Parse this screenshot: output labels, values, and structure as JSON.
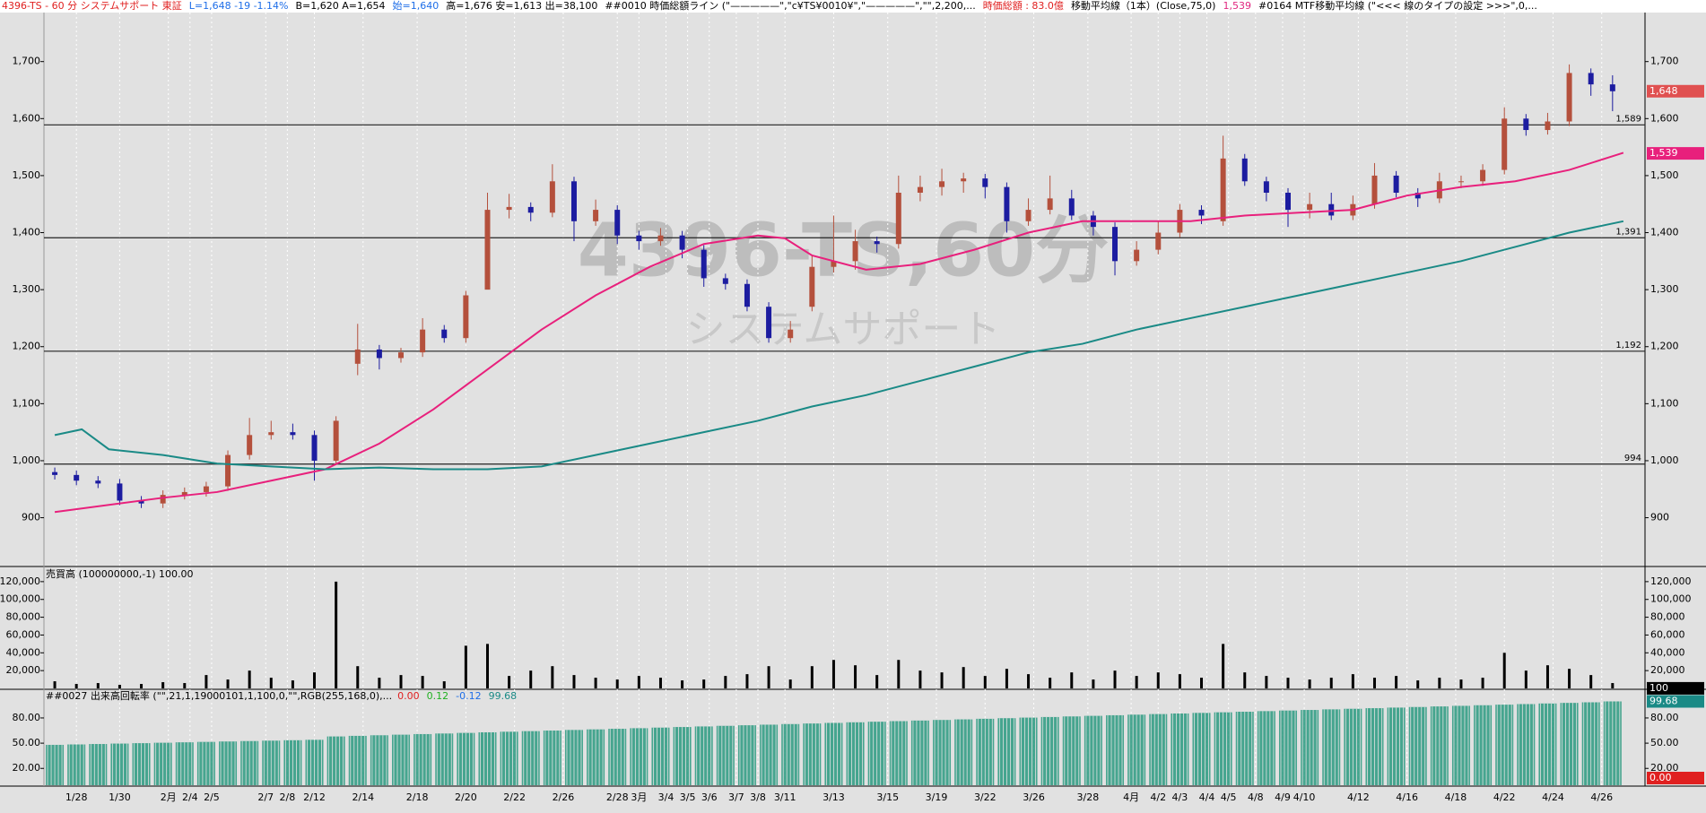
{
  "chart_data": {
    "type": "candlestick",
    "header": [
      {
        "text": "4396-TS - 60 分  システムサポート  東証",
        "color": "#e02020"
      },
      {
        "text": "L=1,648  -19  -1.14%",
        "color": "#1e6ee8"
      },
      {
        "text": "B=1,620  A=1,654",
        "color": "#000000"
      },
      {
        "text": "始=1,640",
        "color": "#1e6ee8"
      },
      {
        "text": "高=1,676  安=1,613  出=38,100",
        "color": "#000000"
      },
      {
        "text": "##0010 時価総額ライン (\"—————\",\"c¥TS¥0010¥\",\"—————\",\"\",2,200,...",
        "color": "#000000"
      },
      {
        "text": "時価総額 : 83.0億",
        "color": "#e02020"
      },
      {
        "text": "移動平均線（1本）(Close,75,0)",
        "color": "#000000"
      },
      {
        "text": "1,539",
        "color": "#e0267f"
      },
      {
        "text": "#0164  MTF移動平均線 (\"<<< 線のタイプの設定 >>>\",0,...",
        "color": "#000000"
      }
    ],
    "watermark": "4396-TS,60分",
    "watermark_sub": "システムサポート",
    "xlim": [
      -2,
      294
    ],
    "xticks": [
      {
        "value": 4,
        "label": "1/28"
      },
      {
        "value": 12,
        "label": "1/30"
      },
      {
        "value": 21,
        "label": "2月"
      },
      {
        "value": 25,
        "label": "2/4"
      },
      {
        "value": 29,
        "label": "2/5"
      },
      {
        "value": 39,
        "label": "2/7"
      },
      {
        "value": 43,
        "label": "2/8"
      },
      {
        "value": 48,
        "label": "2/12"
      },
      {
        "value": 57,
        "label": "2/14"
      },
      {
        "value": 67,
        "label": "2/18"
      },
      {
        "value": 76,
        "label": "2/20"
      },
      {
        "value": 85,
        "label": "2/22"
      },
      {
        "value": 94,
        "label": "2/26"
      },
      {
        "value": 104,
        "label": "2/28"
      },
      {
        "value": 108,
        "label": "3月"
      },
      {
        "value": 113,
        "label": "3/4"
      },
      {
        "value": 117,
        "label": "3/5"
      },
      {
        "value": 121,
        "label": "3/6"
      },
      {
        "value": 126,
        "label": "3/7"
      },
      {
        "value": 130,
        "label": "3/8"
      },
      {
        "value": 135,
        "label": "3/11"
      },
      {
        "value": 144,
        "label": "3/13"
      },
      {
        "value": 154,
        "label": "3/15"
      },
      {
        "value": 163,
        "label": "3/19"
      },
      {
        "value": 172,
        "label": "3/22"
      },
      {
        "value": 181,
        "label": "3/26"
      },
      {
        "value": 191,
        "label": "3/28"
      },
      {
        "value": 199,
        "label": "4月"
      },
      {
        "value": 204,
        "label": "4/2"
      },
      {
        "value": 208,
        "label": "4/3"
      },
      {
        "value": 213,
        "label": "4/4"
      },
      {
        "value": 217,
        "label": "4/5"
      },
      {
        "value": 222,
        "label": "4/8"
      },
      {
        "value": 227,
        "label": "4/9"
      },
      {
        "value": 231,
        "label": "4/10"
      },
      {
        "value": 241,
        "label": "4/12"
      },
      {
        "value": 250,
        "label": "4/16"
      },
      {
        "value": 259,
        "label": "4/18"
      },
      {
        "value": 268,
        "label": "4/22"
      },
      {
        "value": 277,
        "label": "4/24"
      },
      {
        "value": 286,
        "label": "4/26"
      }
    ],
    "ylim": [
      816,
      1786
    ],
    "yticks": [
      {
        "value": 900,
        "label": "900"
      },
      {
        "value": 1000,
        "label": "1,000"
      },
      {
        "value": 1100,
        "label": "1,100"
      },
      {
        "value": 1200,
        "label": "1,200"
      },
      {
        "value": 1300,
        "label": "1,300"
      },
      {
        "value": 1400,
        "label": "1,400"
      },
      {
        "value": 1500,
        "label": "1,500"
      },
      {
        "value": 1600,
        "label": "1,600"
      },
      {
        "value": 1700,
        "label": "1,700"
      }
    ],
    "hlines": [
      {
        "value": 1589,
        "label": "1,589"
      },
      {
        "value": 1391,
        "label": "1,391"
      },
      {
        "value": 1192,
        "label": "1,192"
      },
      {
        "value": 994,
        "label": "994"
      }
    ],
    "up_color": "#b4503c",
    "down_color": "#1c1ca0",
    "candles": {
      "x": [
        0,
        4,
        8,
        12,
        16,
        20,
        24,
        28,
        32,
        36,
        40,
        44,
        48,
        52,
        56,
        60,
        64,
        68,
        72,
        76,
        80,
        84,
        88,
        92,
        96,
        100,
        104,
        108,
        112,
        116,
        120,
        124,
        128,
        132,
        136,
        140,
        144,
        148,
        152,
        156,
        160,
        164,
        168,
        172,
        176,
        180,
        184,
        188,
        192,
        196,
        200,
        204,
        208,
        212,
        216,
        220,
        224,
        228,
        232,
        236,
        240,
        244,
        248,
        252,
        256,
        260,
        264,
        268,
        272,
        276,
        280,
        284,
        288
      ],
      "open": [
        980,
        975,
        965,
        960,
        930,
        925,
        940,
        945,
        955,
        1010,
        1045,
        1050,
        1045,
        1000,
        1170,
        1195,
        1180,
        1190,
        1230,
        1215,
        1300,
        1440,
        1445,
        1435,
        1490,
        1420,
        1440,
        1395,
        1385,
        1395,
        1370,
        1320,
        1310,
        1270,
        1215,
        1270,
        1340,
        1350,
        1385,
        1380,
        1470,
        1480,
        1490,
        1495,
        1480,
        1420,
        1440,
        1460,
        1430,
        1410,
        1350,
        1370,
        1400,
        1440,
        1420,
        1530,
        1490,
        1470,
        1440,
        1450,
        1430,
        1450,
        1500,
        1470,
        1460,
        1490,
        1490,
        1510,
        1600,
        1580,
        1595,
        1680,
        1660
      ],
      "high": [
        988,
        983,
        973,
        968,
        938,
        948,
        953,
        963,
        1018,
        1075,
        1070,
        1065,
        1053,
        1078,
        1240,
        1203,
        1198,
        1250,
        1238,
        1298,
        1470,
        1468,
        1453,
        1520,
        1498,
        1458,
        1448,
        1403,
        1408,
        1403,
        1378,
        1328,
        1318,
        1278,
        1245,
        1360,
        1430,
        1405,
        1393,
        1500,
        1500,
        1512,
        1505,
        1503,
        1488,
        1460,
        1500,
        1475,
        1438,
        1418,
        1385,
        1420,
        1450,
        1448,
        1570,
        1538,
        1498,
        1478,
        1470,
        1470,
        1465,
        1522,
        1508,
        1478,
        1505,
        1500,
        1520,
        1620,
        1608,
        1610,
        1695,
        1688,
        1676
      ],
      "low": [
        967,
        957,
        952,
        922,
        917,
        917,
        932,
        937,
        947,
        1002,
        1037,
        1037,
        965,
        992,
        1150,
        1160,
        1172,
        1182,
        1207,
        1207,
        1385,
        1425,
        1420,
        1427,
        1385,
        1412,
        1380,
        1370,
        1377,
        1355,
        1305,
        1300,
        1262,
        1207,
        1207,
        1262,
        1330,
        1335,
        1365,
        1372,
        1455,
        1465,
        1470,
        1460,
        1400,
        1412,
        1432,
        1422,
        1395,
        1325,
        1342,
        1362,
        1392,
        1415,
        1412,
        1482,
        1455,
        1410,
        1425,
        1422,
        1422,
        1442,
        1462,
        1445,
        1452,
        1478,
        1482,
        1502,
        1570,
        1572,
        1587,
        1640,
        1613
      ],
      "close": [
        975,
        965,
        960,
        930,
        925,
        940,
        945,
        955,
        1010,
        1045,
        1050,
        1045,
        1000,
        1070,
        1195,
        1180,
        1190,
        1230,
        1215,
        1290,
        1440,
        1445,
        1435,
        1490,
        1420,
        1440,
        1395,
        1385,
        1395,
        1370,
        1320,
        1310,
        1270,
        1215,
        1230,
        1340,
        1350,
        1385,
        1380,
        1470,
        1480,
        1490,
        1495,
        1480,
        1420,
        1440,
        1460,
        1430,
        1410,
        1350,
        1370,
        1400,
        1440,
        1430,
        1530,
        1490,
        1470,
        1440,
        1450,
        1430,
        1450,
        1500,
        1470,
        1460,
        1490,
        1490,
        1510,
        1600,
        1580,
        1595,
        1680,
        1660,
        1648
      ]
    },
    "lines": [
      {
        "color": "#e8207c",
        "marker": {
          "value": 1539,
          "label": "1,539"
        },
        "x": [
          0,
          20,
          30,
          40,
          50,
          60,
          70,
          80,
          90,
          100,
          110,
          120,
          130,
          135,
          140,
          150,
          160,
          170,
          180,
          190,
          200,
          210,
          220,
          230,
          240,
          250,
          260,
          270,
          280,
          290
        ],
        "values": [
          910,
          935,
          945,
          965,
          985,
          1030,
          1090,
          1160,
          1230,
          1290,
          1340,
          1380,
          1395,
          1390,
          1360,
          1335,
          1345,
          1370,
          1400,
          1420,
          1420,
          1420,
          1430,
          1435,
          1440,
          1465,
          1480,
          1490,
          1510,
          1540
        ]
      },
      {
        "color": "#1a8a86",
        "x": [
          0,
          5,
          10,
          20,
          30,
          40,
          50,
          60,
          70,
          80,
          90,
          100,
          110,
          120,
          130,
          140,
          150,
          160,
          170,
          180,
          190,
          200,
          210,
          220,
          230,
          240,
          250,
          260,
          270,
          280,
          290
        ],
        "values": [
          1045,
          1055,
          1020,
          1010,
          995,
          990,
          985,
          988,
          985,
          985,
          990,
          1010,
          1030,
          1050,
          1070,
          1095,
          1115,
          1140,
          1165,
          1190,
          1205,
          1230,
          1250,
          1270,
          1290,
          1310,
          1330,
          1350,
          1375,
          1400,
          1420
        ]
      }
    ],
    "last_price": {
      "value": 1648,
      "label": "1,648",
      "color": "#e05050"
    },
    "volume": {
      "title": "売買高 (100000000,-1)   100.00",
      "color": "#000000",
      "ylim": [
        0,
        136000
      ],
      "yticks": [
        {
          "value": 20000,
          "label": "20,000"
        },
        {
          "value": 40000,
          "label": "40,000"
        },
        {
          "value": 60000,
          "label": "60,000"
        },
        {
          "value": 80000,
          "label": "80,000"
        },
        {
          "value": 100000,
          "label": "100,000"
        },
        {
          "value": 120000,
          "label": "120,000"
        }
      ],
      "marker": {
        "value": 100,
        "label": "100"
      },
      "values": [
        8000,
        5000,
        6000,
        4000,
        5000,
        7000,
        6000,
        15000,
        10000,
        20000,
        12000,
        9000,
        18000,
        120000,
        25000,
        12000,
        15000,
        14000,
        8000,
        48000,
        50000,
        14000,
        20000,
        25000,
        15000,
        12000,
        10000,
        14000,
        12000,
        9000,
        10000,
        14000,
        16000,
        25000,
        10000,
        25000,
        32000,
        26000,
        15000,
        32000,
        20000,
        18000,
        24000,
        14000,
        22000,
        16000,
        12000,
        18000,
        10000,
        20000,
        14000,
        18000,
        16000,
        12000,
        50000,
        18000,
        14000,
        12000,
        10000,
        12000,
        16000,
        12000,
        14000,
        9000,
        12000,
        10000,
        12000,
        40000,
        20000,
        26000,
        22000,
        15000,
        6000
      ]
    },
    "turnover": {
      "title": "##0027 出来高回転率 (\"\",21,1,19000101,1,100,0,\"\",RGB(255,168,0),...",
      "readouts": [
        {
          "text": "0.00",
          "color": "#e02020"
        },
        {
          "text": "0.12",
          "color": "#20b020"
        },
        {
          "text": "-0.12",
          "color": "#1e6ee8"
        },
        {
          "text": "99.68",
          "color": "#1a8a86"
        }
      ],
      "color": "#2a9a80",
      "ylim": [
        0,
        113
      ],
      "yticks": [
        {
          "value": 20,
          "label": "20.00"
        },
        {
          "value": 50,
          "label": "50.00"
        },
        {
          "value": 80,
          "label": "80.00"
        }
      ],
      "markers": [
        {
          "value": 99.68,
          "label": "99.68",
          "color": "#1a8a86"
        },
        {
          "value": 0,
          "label": "0.00",
          "color": "#e02020"
        }
      ],
      "values": [
        48,
        48.5,
        49,
        49.5,
        50,
        50.5,
        51,
        51.5,
        52,
        52.5,
        53,
        53.5,
        54,
        58,
        58.7,
        59.4,
        60.1,
        60.8,
        61.5,
        62.2,
        62.9,
        63.6,
        64.3,
        65,
        65.7,
        66.4,
        67.1,
        67.8,
        68.5,
        69.2,
        69.9,
        70.6,
        71.3,
        72,
        72.7,
        73.4,
        74.1,
        74.8,
        75.5,
        76.2,
        76.9,
        77.6,
        78.3,
        79,
        79.7,
        80.4,
        81.1,
        81.8,
        82.5,
        83.2,
        83.9,
        84.6,
        85.3,
        86,
        86.7,
        87.4,
        88.1,
        88.8,
        89.5,
        90.2,
        90.9,
        91.6,
        92.3,
        93,
        93.7,
        94.4,
        95.1,
        95.8,
        96.5,
        97.2,
        97.9,
        98.6,
        99.68
      ]
    }
  }
}
